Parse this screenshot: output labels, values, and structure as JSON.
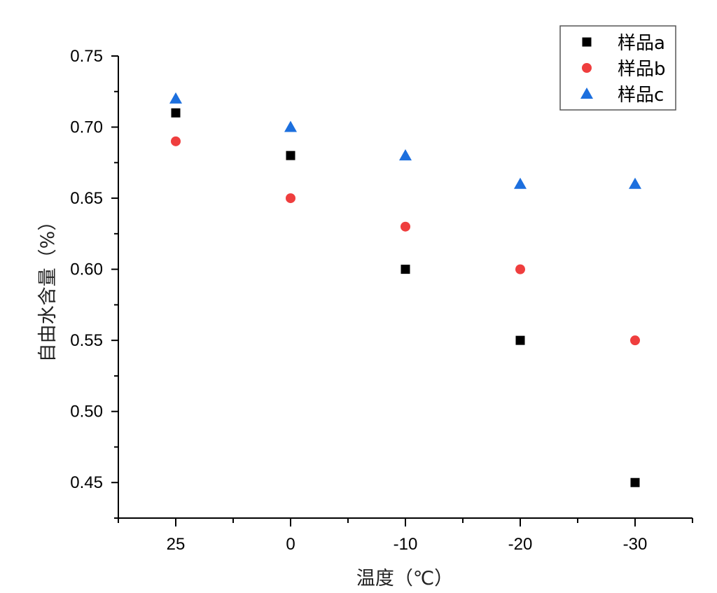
{
  "chart_data": {
    "type": "scatter",
    "title": "",
    "xlabel": "温度（℃）",
    "ylabel": "自由水含量（%）",
    "categories": [
      "25",
      "0",
      "-10",
      "-20",
      "-30"
    ],
    "ylim": [
      0.425,
      0.75
    ],
    "yticks": [
      0.45,
      0.5,
      0.55,
      0.6,
      0.65,
      0.7,
      0.75
    ],
    "ytick_labels": [
      "0.45",
      "0.50",
      "0.55",
      "0.60",
      "0.65",
      "0.70",
      "0.75"
    ],
    "grid": false,
    "legend_position": "top-right",
    "series": [
      {
        "name": "样品a",
        "marker": "square",
        "color": "#000000",
        "values": [
          0.71,
          0.68,
          0.6,
          0.55,
          0.45
        ]
      },
      {
        "name": "样品b",
        "marker": "circle",
        "color": "#ef3e3e",
        "values": [
          0.69,
          0.65,
          0.63,
          0.6,
          0.55
        ]
      },
      {
        "name": "样品c",
        "marker": "triangle",
        "color": "#1c6fde",
        "values": [
          0.72,
          0.7,
          0.68,
          0.66,
          0.66
        ]
      }
    ]
  }
}
